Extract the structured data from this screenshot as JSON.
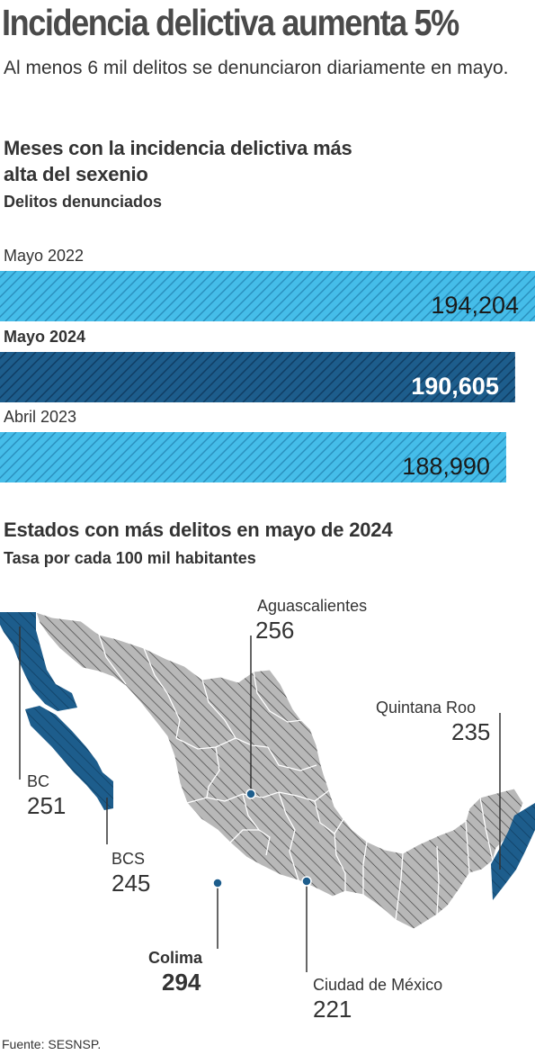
{
  "headline": "Incidencia delictiva aumenta 5%",
  "subhead": "Al menos 6 mil delitos se denunciaron diariamente en mayo.",
  "colors": {
    "light_blue": "#45bde9",
    "dark_blue": "#1d5d8c",
    "map_gray": "#b8b8b8",
    "hatch": "#3c3c3c"
  },
  "chart_data": [
    {
      "type": "bar",
      "title": "Meses con la incidencia delictiva más alta del sexenio",
      "subtitle": "Delitos denunciados",
      "categories": [
        "Mayo 2022",
        "Mayo 2024",
        "Abril 2023"
      ],
      "values": [
        194204,
        190605,
        188990
      ],
      "value_labels": [
        "194,204",
        "190,605",
        "188,990"
      ],
      "highlight": "Mayo 2024"
    },
    {
      "type": "map",
      "title": "Estados con más delitos en mayo de 2024",
      "subtitle": "Tasa por cada 100 mil habitantes",
      "labels": [
        {
          "state": "Aguascalientes",
          "value": "256"
        },
        {
          "state": "Quintana Roo",
          "value": "235"
        },
        {
          "state": "BC",
          "value": "251"
        },
        {
          "state": "BCS",
          "value": "245"
        },
        {
          "state": "Colima",
          "value": "294"
        },
        {
          "state": "Ciudad de México",
          "value": "221"
        }
      ]
    }
  ],
  "source": "Fuente: SESNSP."
}
